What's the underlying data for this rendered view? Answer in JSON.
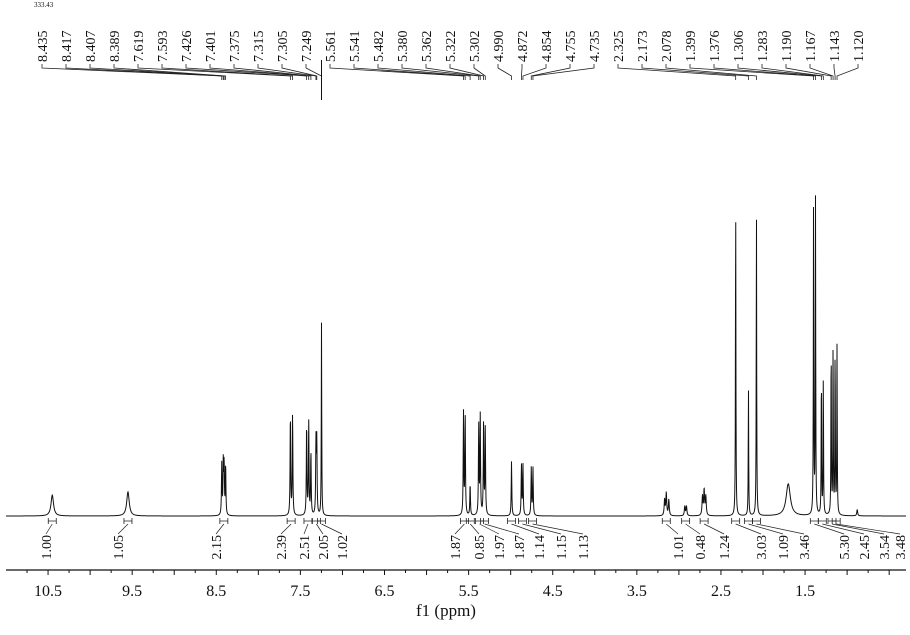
{
  "chart_data": {
    "type": "line",
    "title": "",
    "xlabel": "f1 (ppm)",
    "ylabel": "",
    "xlim": [
      11.0,
      0.3
    ],
    "x_reversed": true,
    "x_ticks": [
      "10.5",
      "9.5",
      "8.5",
      "7.5",
      "6.5",
      "5.5",
      "4.5",
      "3.5",
      "2.5",
      "1.5"
    ],
    "stray_text": "333.43",
    "peak_labels": [
      "8.435",
      "8.417",
      "8.407",
      "8.389",
      "7.619",
      "7.593",
      "7.426",
      "7.401",
      "7.375",
      "7.315",
      "7.305",
      "7.249",
      "5.561",
      "5.541",
      "5.482",
      "5.380",
      "5.362",
      "5.322",
      "5.302",
      "4.990",
      "4.872",
      "4.854",
      "4.755",
      "4.735",
      "2.325",
      "2.173",
      "2.078",
      "1.399",
      "1.376",
      "1.306",
      "1.283",
      "1.190",
      "1.167",
      "1.143",
      "1.120"
    ],
    "peaks": [
      {
        "ppm": 10.45,
        "height": 0.065,
        "width": 0.018
      },
      {
        "ppm": 9.55,
        "height": 0.075,
        "width": 0.018
      },
      {
        "ppm": 8.435,
        "height": 0.16,
        "width": 0.004
      },
      {
        "ppm": 8.417,
        "height": 0.16,
        "width": 0.004
      },
      {
        "ppm": 8.407,
        "height": 0.16,
        "width": 0.004
      },
      {
        "ppm": 8.389,
        "height": 0.16,
        "width": 0.004
      },
      {
        "ppm": 7.619,
        "height": 0.32,
        "width": 0.004
      },
      {
        "ppm": 7.593,
        "height": 0.32,
        "width": 0.004
      },
      {
        "ppm": 7.426,
        "height": 0.29,
        "width": 0.004
      },
      {
        "ppm": 7.401,
        "height": 0.29,
        "width": 0.004
      },
      {
        "ppm": 7.375,
        "height": 0.2,
        "width": 0.004
      },
      {
        "ppm": 7.315,
        "height": 0.23,
        "width": 0.004
      },
      {
        "ppm": 7.305,
        "height": 0.23,
        "width": 0.004
      },
      {
        "ppm": 7.249,
        "height": 0.6,
        "width": 0.003
      },
      {
        "ppm": 5.561,
        "height": 0.32,
        "width": 0.004
      },
      {
        "ppm": 5.541,
        "height": 0.32,
        "width": 0.004
      },
      {
        "ppm": 5.482,
        "height": 0.1,
        "width": 0.004
      },
      {
        "ppm": 5.38,
        "height": 0.28,
        "width": 0.004
      },
      {
        "ppm": 5.362,
        "height": 0.31,
        "width": 0.004
      },
      {
        "ppm": 5.322,
        "height": 0.3,
        "width": 0.004
      },
      {
        "ppm": 5.302,
        "height": 0.27,
        "width": 0.004
      },
      {
        "ppm": 4.99,
        "height": 0.17,
        "width": 0.004
      },
      {
        "ppm": 4.872,
        "height": 0.16,
        "width": 0.004
      },
      {
        "ppm": 4.854,
        "height": 0.16,
        "width": 0.004
      },
      {
        "ppm": 4.755,
        "height": 0.15,
        "width": 0.004
      },
      {
        "ppm": 4.735,
        "height": 0.15,
        "width": 0.004
      },
      {
        "ppm": 3.17,
        "height": 0.05,
        "width": 0.006
      },
      {
        "ppm": 3.15,
        "height": 0.07,
        "width": 0.006
      },
      {
        "ppm": 3.12,
        "height": 0.05,
        "width": 0.006
      },
      {
        "ppm": 2.93,
        "height": 0.03,
        "width": 0.006
      },
      {
        "ppm": 2.91,
        "height": 0.03,
        "width": 0.006
      },
      {
        "ppm": 2.72,
        "height": 0.06,
        "width": 0.006
      },
      {
        "ppm": 2.7,
        "height": 0.08,
        "width": 0.006
      },
      {
        "ppm": 2.68,
        "height": 0.06,
        "width": 0.006
      },
      {
        "ppm": 2.325,
        "height": 1.0,
        "width": 0.003
      },
      {
        "ppm": 2.173,
        "height": 0.4,
        "width": 0.003
      },
      {
        "ppm": 2.078,
        "height": 0.96,
        "width": 0.003
      },
      {
        "ppm": 1.7,
        "height": 0.1,
        "width": 0.03
      },
      {
        "ppm": 1.399,
        "height": 1.0,
        "width": 0.003
      },
      {
        "ppm": 1.376,
        "height": 0.98,
        "width": 0.003
      },
      {
        "ppm": 1.306,
        "height": 0.45,
        "width": 0.003
      },
      {
        "ppm": 1.283,
        "height": 0.44,
        "width": 0.003
      },
      {
        "ppm": 1.19,
        "height": 0.54,
        "width": 0.003
      },
      {
        "ppm": 1.167,
        "height": 0.54,
        "width": 0.003
      },
      {
        "ppm": 1.143,
        "height": 0.53,
        "width": 0.003
      },
      {
        "ppm": 1.12,
        "height": 0.53,
        "width": 0.003
      },
      {
        "ppm": 0.88,
        "height": 0.02,
        "width": 0.006
      }
    ],
    "integrals": [
      {
        "value": "1.00",
        "ppm": 10.45
      },
      {
        "value": "1.05",
        "ppm": 9.55
      },
      {
        "value": "2.15",
        "ppm": 8.41
      },
      {
        "value": "2.39",
        "ppm": 7.61
      },
      {
        "value": "2.51",
        "ppm": 7.41
      },
      {
        "value": "2.05",
        "ppm": 7.31
      },
      {
        "value": "1.02",
        "ppm": 7.25
      },
      {
        "value": "1.87",
        "ppm": 5.55
      },
      {
        "value": "0.85",
        "ppm": 5.48
      },
      {
        "value": "1.97",
        "ppm": 5.37
      },
      {
        "value": "1.87",
        "ppm": 5.31
      },
      {
        "value": "1.14",
        "ppm": 4.99
      },
      {
        "value": "1.15",
        "ppm": 4.86
      },
      {
        "value": "1.13",
        "ppm": 4.74
      },
      {
        "value": "1.01",
        "ppm": 3.15
      },
      {
        "value": "0.48",
        "ppm": 2.92
      },
      {
        "value": "1.24",
        "ppm": 2.7
      },
      {
        "value": "3.03",
        "ppm": 2.325
      },
      {
        "value": "1.09",
        "ppm": 2.173
      },
      {
        "value": "3.46",
        "ppm": 2.078
      },
      {
        "value": "5.30",
        "ppm": 1.39
      },
      {
        "value": "2.45",
        "ppm": 1.295
      },
      {
        "value": "3.54",
        "ppm": 1.18
      },
      {
        "value": "3.48",
        "ppm": 1.13
      }
    ]
  }
}
